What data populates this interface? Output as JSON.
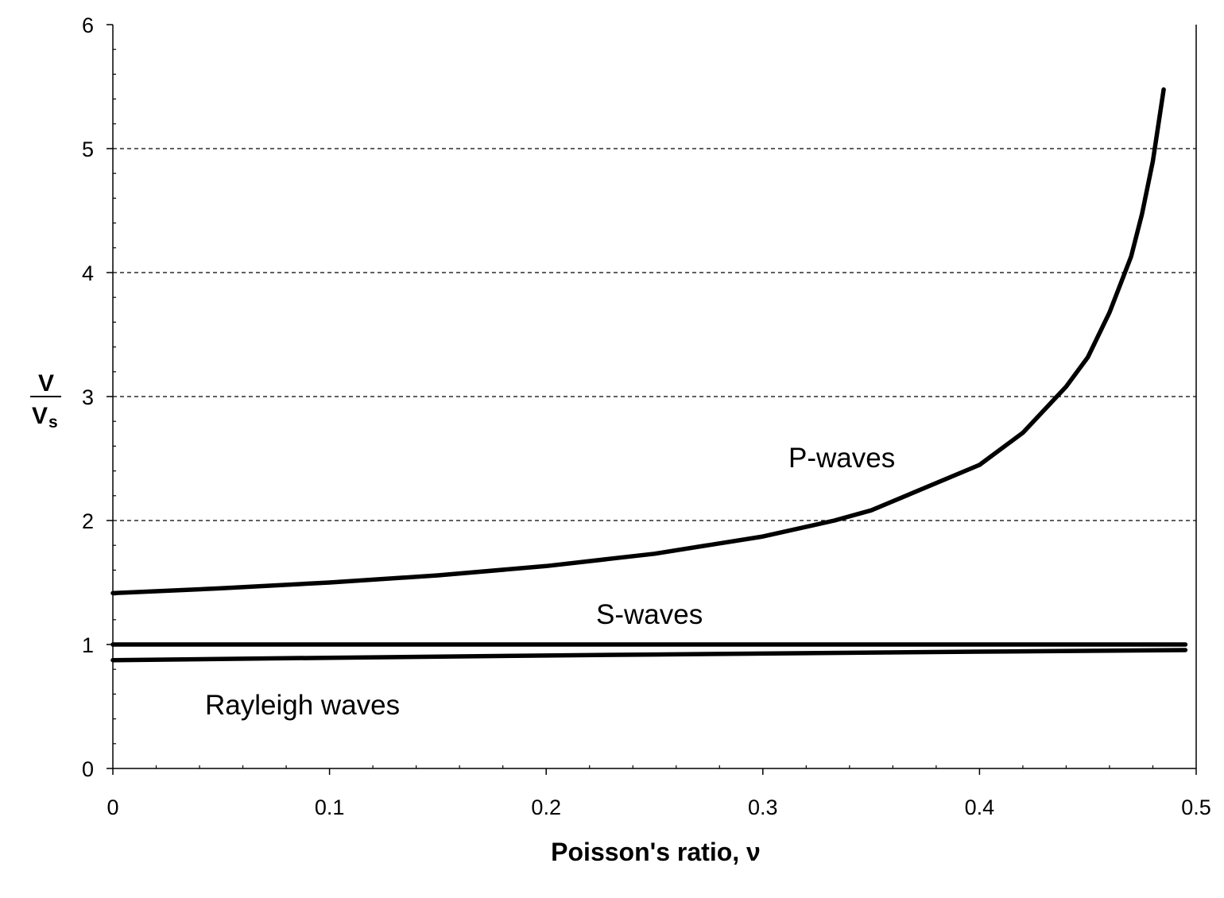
{
  "chart_data": {
    "type": "line",
    "xlabel": "Poisson's ratio, ν",
    "ylabel": {
      "numerator": "V",
      "denominator": "V",
      "denominator_subscript": "s"
    },
    "xlim": [
      0,
      0.5
    ],
    "ylim": [
      0,
      6
    ],
    "x_ticks": [
      "0",
      "0.1",
      "0.2",
      "0.3",
      "0.4",
      "0.5"
    ],
    "y_ticks": [
      "0",
      "1",
      "2",
      "3",
      "4",
      "5",
      "6"
    ],
    "x_tick_values": [
      0,
      0.1,
      0.2,
      0.3,
      0.4,
      0.5
    ],
    "y_tick_values": [
      0,
      1,
      2,
      3,
      4,
      5,
      6
    ],
    "grid": {
      "y_major": true,
      "style": "dashed",
      "values": [
        2,
        3,
        4,
        5
      ]
    },
    "line_color": "#000000",
    "series": [
      {
        "name": "P-waves",
        "x": [
          0,
          0.05,
          0.1,
          0.15,
          0.2,
          0.25,
          0.3,
          0.333,
          0.35,
          0.4,
          0.42,
          0.44,
          0.45,
          0.46,
          0.47,
          0.475,
          0.48,
          0.485
        ],
        "y": [
          1.414,
          1.453,
          1.5,
          1.558,
          1.633,
          1.732,
          1.871,
          2.0,
          2.082,
          2.449,
          2.708,
          3.08,
          3.317,
          3.679,
          4.131,
          4.472,
          4.899,
          5.477
        ]
      },
      {
        "name": "S-waves",
        "x": [
          0,
          0.1,
          0.2,
          0.3,
          0.4,
          0.495
        ],
        "y": [
          1,
          1,
          1,
          1,
          1,
          1
        ]
      },
      {
        "name": "Rayleigh waves",
        "x": [
          0,
          0.1,
          0.2,
          0.25,
          0.3,
          0.4,
          0.495
        ],
        "y": [
          0.874,
          0.893,
          0.911,
          0.919,
          0.927,
          0.942,
          0.955
        ]
      }
    ]
  }
}
